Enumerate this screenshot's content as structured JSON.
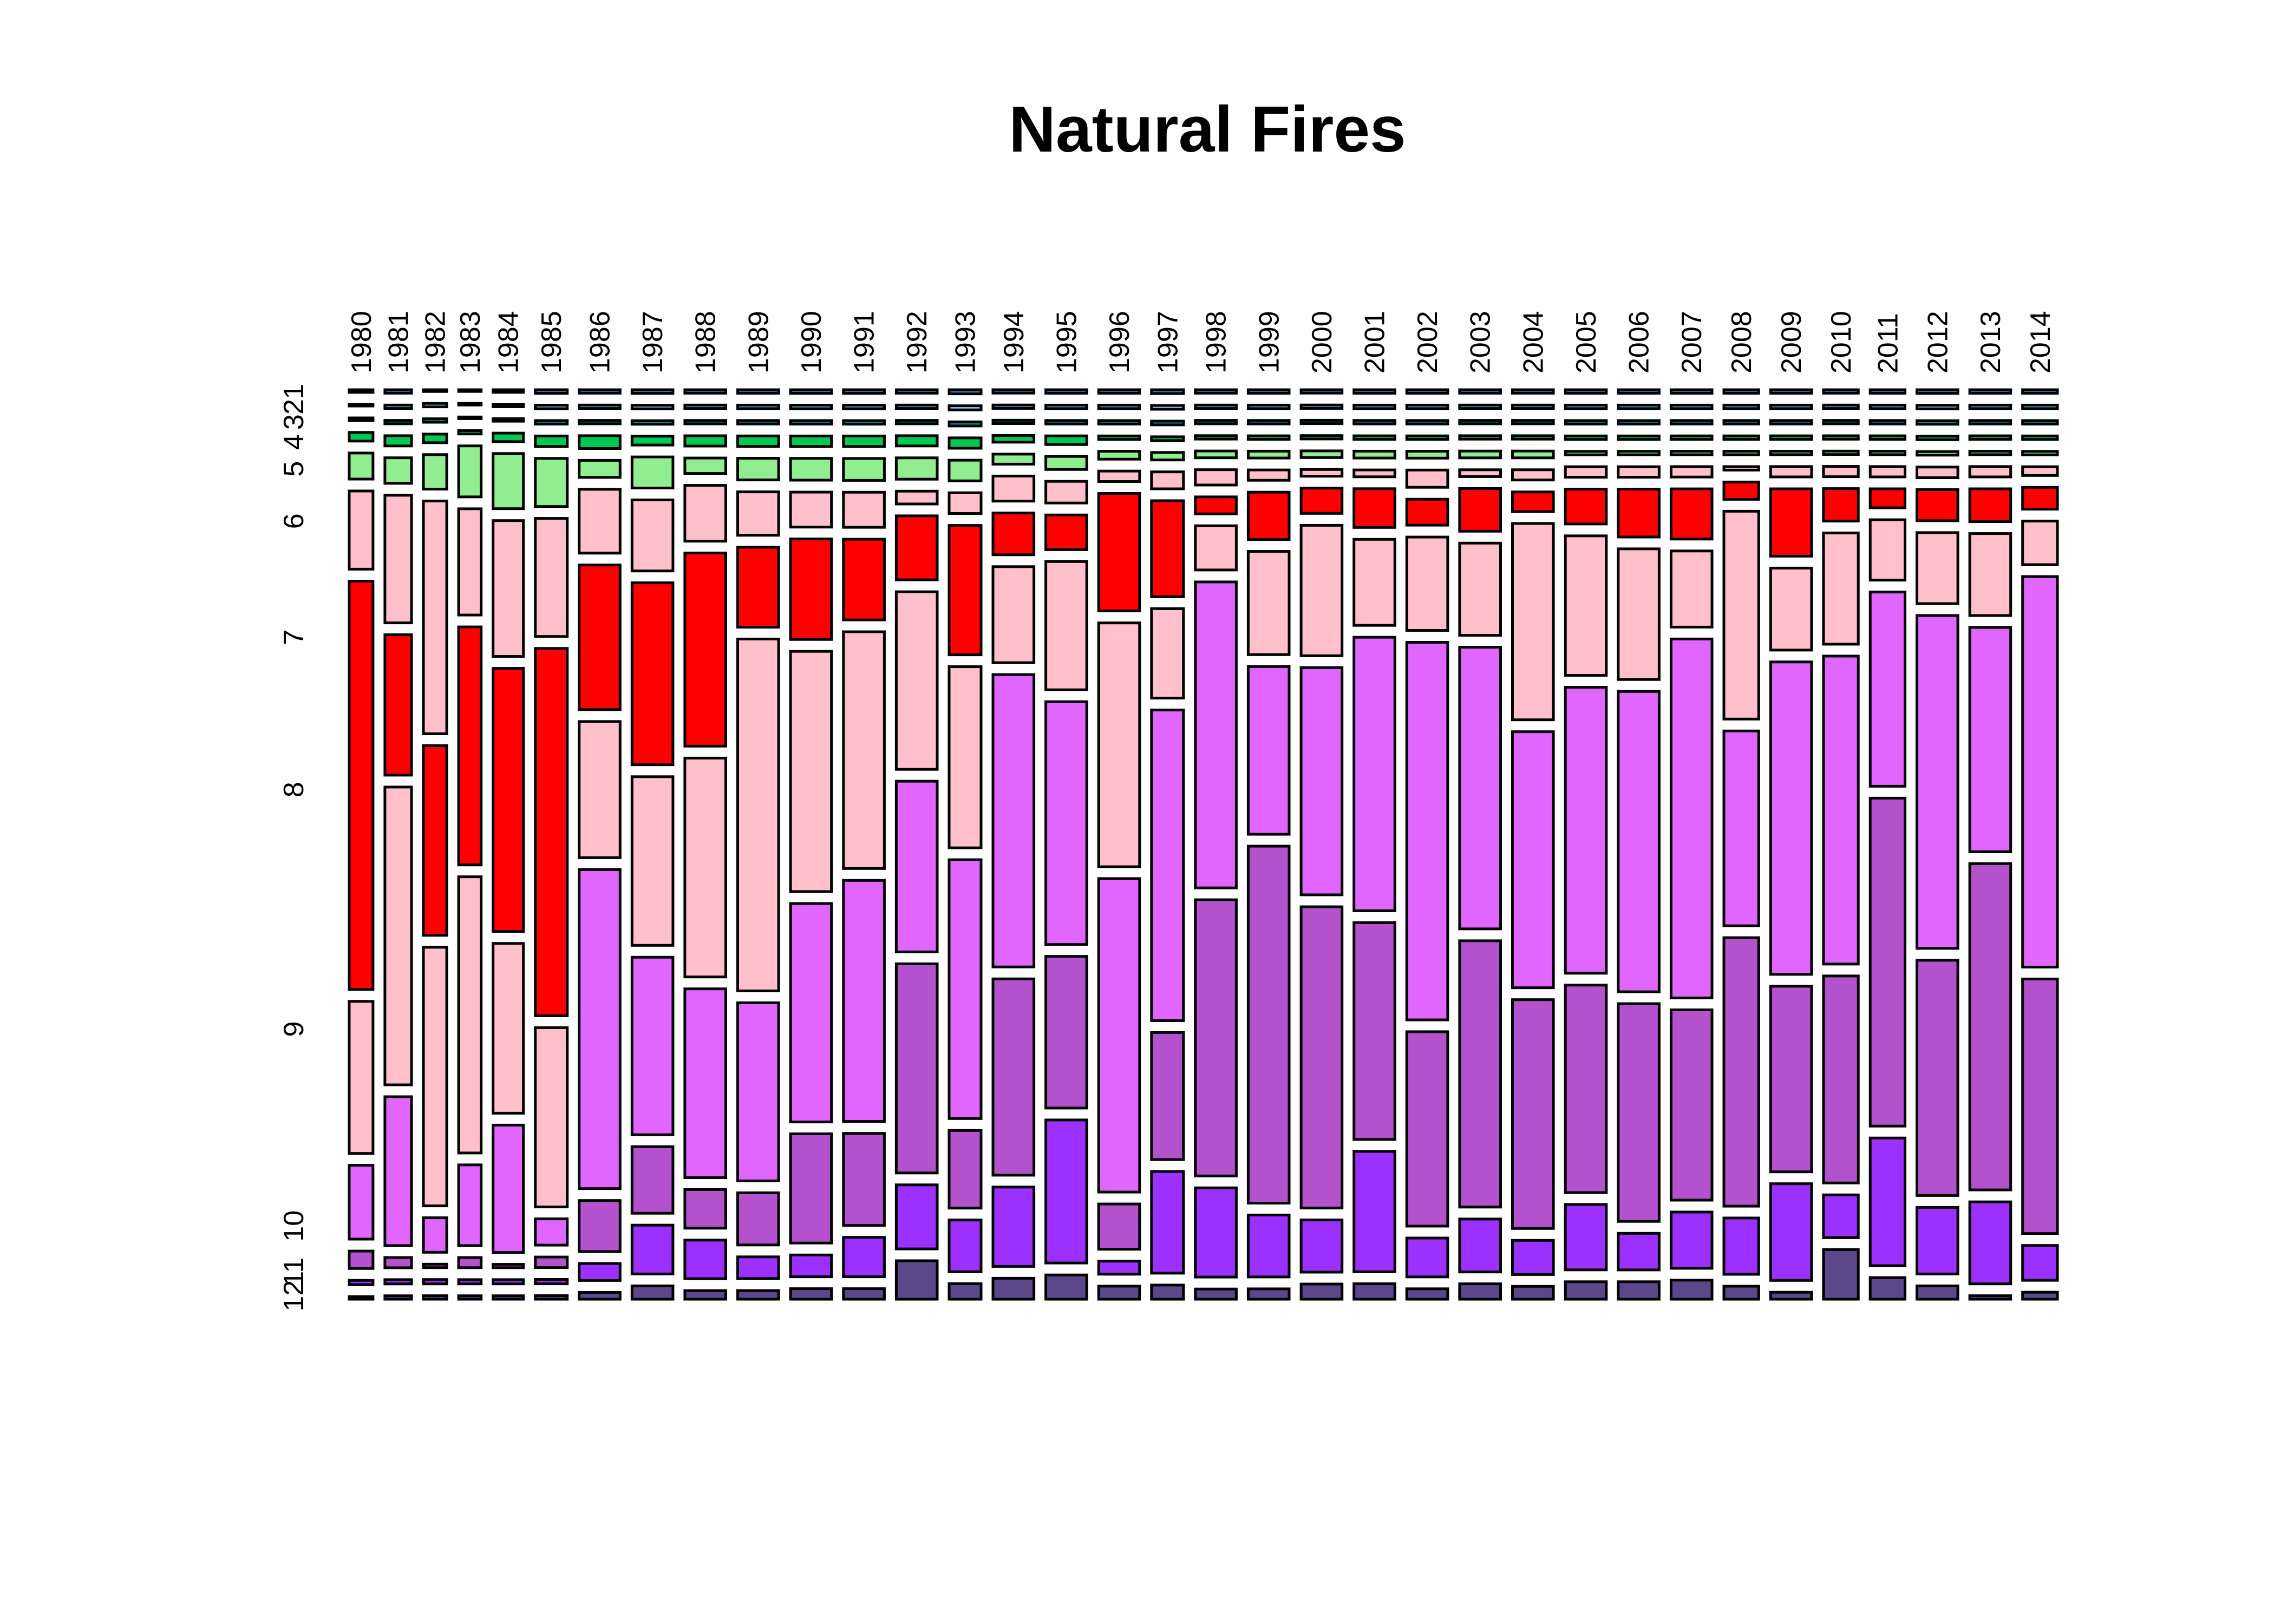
{
  "chart_data": {
    "type": "mosaic",
    "title": "Natural Fires",
    "xlabel": "",
    "ylabel": "",
    "columns": [
      "1980",
      "1981",
      "1982",
      "1983",
      "1984",
      "1985",
      "1986",
      "1987",
      "1988",
      "1989",
      "1990",
      "1991",
      "1992",
      "1993",
      "1994",
      "1995",
      "1996",
      "1997",
      "1998",
      "1999",
      "2000",
      "2001",
      "2002",
      "2003",
      "2004",
      "2005",
      "2006",
      "2007",
      "2008",
      "2009",
      "2010",
      "2011",
      "2012",
      "2013",
      "2014"
    ],
    "column_widths": [
      0.58,
      0.65,
      0.57,
      0.55,
      0.74,
      0.78,
      1.0,
      1.0,
      1.0,
      1.0,
      1.0,
      1.0,
      1.0,
      0.78,
      1.0,
      1.0,
      1.0,
      0.78,
      1.0,
      1.0,
      1.0,
      1.0,
      1.0,
      1.0,
      1.0,
      1.0,
      1.0,
      1.0,
      0.85,
      1.0,
      0.85,
      0.85,
      1.0,
      1.0,
      0.85
    ],
    "rows": [
      "1",
      "2",
      "3",
      "4",
      "5",
      "6",
      "7",
      "8",
      "9",
      "10",
      "11",
      "12"
    ],
    "row_axis_labels": [
      "1",
      "2",
      "3",
      "4",
      "5",
      "6",
      "7",
      "8",
      "9",
      "10",
      "11",
      "12"
    ],
    "row_colors": {
      "1": "#4682B4",
      "2": "#87CEFA",
      "3": "#008B8B",
      "4": "#00C853",
      "5": "#90EE90",
      "6": "#FFC0CB",
      "7": "#FF0000",
      "8": "#FFC0CB",
      "9": "#E066FF",
      "10": "#B452CD",
      "11": "#9B30FF",
      "12": "#5D478B"
    },
    "proportions": [
      [
        0.003,
        0.002,
        0.003,
        0.01,
        0.03,
        0.09,
        0.47,
        0.175,
        0.085,
        0.02,
        0.005,
        0.003
      ],
      [
        0.004,
        0.004,
        0.004,
        0.012,
        0.03,
        0.15,
        0.165,
        0.35,
        0.175,
        0.012,
        0.005,
        0.004
      ],
      [
        0.002,
        0.004,
        0.004,
        0.01,
        0.04,
        0.27,
        0.22,
        0.3,
        0.04,
        0.004,
        0.005,
        0.004
      ],
      [
        0.002,
        0.002,
        0.002,
        0.004,
        0.06,
        0.125,
        0.28,
        0.325,
        0.095,
        0.012,
        0.005,
        0.004
      ],
      [
        0.003,
        0.003,
        0.003,
        0.01,
        0.065,
        0.16,
        0.31,
        0.2,
        0.15,
        0.004,
        0.005,
        0.004
      ],
      [
        0.004,
        0.004,
        0.004,
        0.012,
        0.055,
        0.135,
        0.42,
        0.205,
        0.03,
        0.012,
        0.005,
        0.004
      ],
      [
        0.004,
        0.004,
        0.004,
        0.015,
        0.02,
        0.075,
        0.17,
        0.16,
        0.375,
        0.06,
        0.02,
        0.008
      ],
      [
        0.004,
        0.004,
        0.004,
        0.01,
        0.035,
        0.08,
        0.205,
        0.19,
        0.2,
        0.075,
        0.055,
        0.015
      ],
      [
        0.004,
        0.004,
        0.004,
        0.012,
        0.018,
        0.065,
        0.225,
        0.255,
        0.22,
        0.045,
        0.045,
        0.01
      ],
      [
        0.004,
        0.004,
        0.004,
        0.012,
        0.025,
        0.05,
        0.092,
        0.405,
        0.205,
        0.06,
        0.025,
        0.01
      ],
      [
        0.004,
        0.004,
        0.004,
        0.012,
        0.025,
        0.04,
        0.115,
        0.275,
        0.25,
        0.125,
        0.025,
        0.012
      ],
      [
        0.004,
        0.004,
        0.004,
        0.012,
        0.025,
        0.04,
        0.092,
        0.27,
        0.275,
        0.105,
        0.045,
        0.012
      ],
      [
        0.004,
        0.004,
        0.004,
        0.012,
        0.025,
        0.015,
        0.075,
        0.208,
        0.2,
        0.245,
        0.075,
        0.045
      ],
      [
        0.004,
        0.004,
        0.004,
        0.01,
        0.02,
        0.02,
        0.125,
        0.175,
        0.25,
        0.075,
        0.05,
        0.015
      ],
      [
        0.004,
        0.004,
        0.004,
        0.008,
        0.012,
        0.03,
        0.05,
        0.115,
        0.35,
        0.235,
        0.095,
        0.025
      ],
      [
        0.004,
        0.004,
        0.004,
        0.01,
        0.015,
        0.025,
        0.04,
        0.148,
        0.28,
        0.175,
        0.165,
        0.028
      ],
      [
        0.004,
        0.004,
        0.004,
        0.004,
        0.009,
        0.012,
        0.135,
        0.28,
        0.36,
        0.052,
        0.015,
        0.015
      ],
      [
        0.004,
        0.004,
        0.004,
        0.004,
        0.008,
        0.018,
        0.102,
        0.095,
        0.33,
        0.135,
        0.108,
        0.015
      ],
      [
        0.004,
        0.004,
        0.004,
        0.004,
        0.008,
        0.018,
        0.02,
        0.052,
        0.36,
        0.325,
        0.105,
        0.012
      ],
      [
        0.004,
        0.004,
        0.004,
        0.004,
        0.008,
        0.012,
        0.055,
        0.12,
        0.195,
        0.415,
        0.072,
        0.012
      ],
      [
        0.004,
        0.004,
        0.004,
        0.004,
        0.008,
        0.008,
        0.03,
        0.155,
        0.27,
        0.358,
        0.062,
        0.018
      ],
      [
        0.004,
        0.004,
        0.004,
        0.004,
        0.008,
        0.008,
        0.045,
        0.1,
        0.318,
        0.252,
        0.14,
        0.018
      ],
      [
        0.004,
        0.004,
        0.004,
        0.004,
        0.008,
        0.02,
        0.03,
        0.108,
        0.437,
        0.225,
        0.045,
        0.012
      ],
      [
        0.004,
        0.004,
        0.004,
        0.004,
        0.008,
        0.008,
        0.05,
        0.108,
        0.33,
        0.312,
        0.062,
        0.018
      ],
      [
        0.004,
        0.004,
        0.004,
        0.004,
        0.008,
        0.012,
        0.023,
        0.23,
        0.3,
        0.268,
        0.04,
        0.015
      ],
      [
        0.004,
        0.004,
        0.004,
        0.004,
        0.004,
        0.012,
        0.04,
        0.16,
        0.328,
        0.238,
        0.075,
        0.02
      ],
      [
        0.004,
        0.004,
        0.004,
        0.004,
        0.004,
        0.012,
        0.055,
        0.15,
        0.345,
        0.25,
        0.042,
        0.02
      ],
      [
        0.004,
        0.004,
        0.004,
        0.004,
        0.004,
        0.012,
        0.058,
        0.088,
        0.415,
        0.22,
        0.065,
        0.022
      ],
      [
        0.004,
        0.004,
        0.004,
        0.004,
        0.004,
        0.004,
        0.02,
        0.24,
        0.225,
        0.31,
        0.065,
        0.015
      ],
      [
        0.004,
        0.004,
        0.004,
        0.004,
        0.004,
        0.012,
        0.078,
        0.095,
        0.362,
        0.215,
        0.112,
        0.008
      ],
      [
        0.004,
        0.004,
        0.004,
        0.004,
        0.004,
        0.012,
        0.038,
        0.13,
        0.36,
        0.242,
        0.05,
        0.058
      ],
      [
        0.004,
        0.004,
        0.004,
        0.004,
        0.004,
        0.012,
        0.022,
        0.07,
        0.225,
        0.38,
        0.148,
        0.025
      ],
      [
        0.004,
        0.004,
        0.004,
        0.004,
        0.004,
        0.012,
        0.035,
        0.08,
        0.375,
        0.265,
        0.075,
        0.015
      ],
      [
        0.004,
        0.004,
        0.004,
        0.004,
        0.004,
        0.012,
        0.038,
        0.095,
        0.26,
        0.378,
        0.095,
        0.004
      ],
      [
        0.004,
        0.004,
        0.004,
        0.004,
        0.004,
        0.01,
        0.025,
        0.05,
        0.448,
        0.292,
        0.04,
        0.008
      ]
    ],
    "grid": false,
    "legend": "none"
  }
}
